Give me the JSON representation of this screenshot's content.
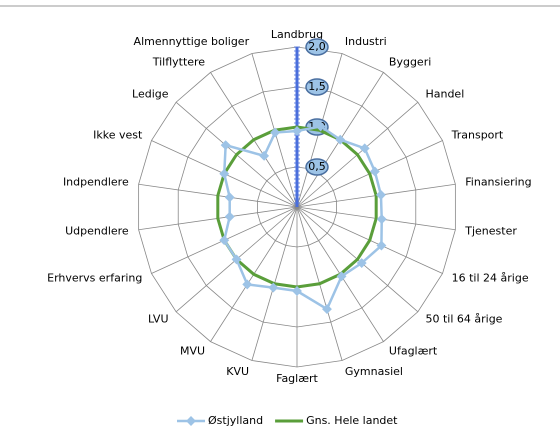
{
  "chart_data": {
    "type": "radar",
    "categories": [
      "Landbrug",
      "Industri",
      "Byggeri",
      "Handel",
      "Transport",
      "Finansiering",
      "Tjenester",
      "16 til 24 årige",
      "50 til 64 årige",
      "Ufaglært",
      "Gymnasiel",
      "Faglært",
      "KVU",
      "MVU",
      "LVU",
      "Erhvervs erfaring",
      "Udpendlere",
      "Indpendlere",
      "Ikke vest",
      "Ledige",
      "Tilflyttere",
      "Almennyttige boliger"
    ],
    "series": [
      {
        "name": "Østjylland",
        "color": "#9dc3e6",
        "values": [
          0.95,
          1.05,
          1.0,
          1.12,
          1.07,
          1.06,
          1.07,
          1.16,
          1.07,
          1.03,
          1.33,
          1.05,
          1.05,
          1.15,
          1.0,
          1.0,
          0.85,
          0.85,
          1.0,
          1.18,
          0.76,
          0.97
        ]
      },
      {
        "name": "Gns. Hele landet",
        "color": "#5a9e3a",
        "values": [
          1,
          1,
          1,
          1,
          1,
          1,
          1,
          1,
          1,
          1,
          1,
          1,
          1,
          1,
          1,
          1,
          1,
          1,
          1,
          1,
          1,
          1
        ]
      }
    ],
    "ylim": [
      0,
      2
    ],
    "yticks": [
      {
        "value": 0.5,
        "label": "0,5"
      },
      {
        "value": 1,
        "label": "1,0"
      },
      {
        "value": 1.5,
        "label": "1,5"
      },
      {
        "value": 2,
        "label": "2,0"
      }
    ],
    "grid": true,
    "legend": "bottom"
  }
}
